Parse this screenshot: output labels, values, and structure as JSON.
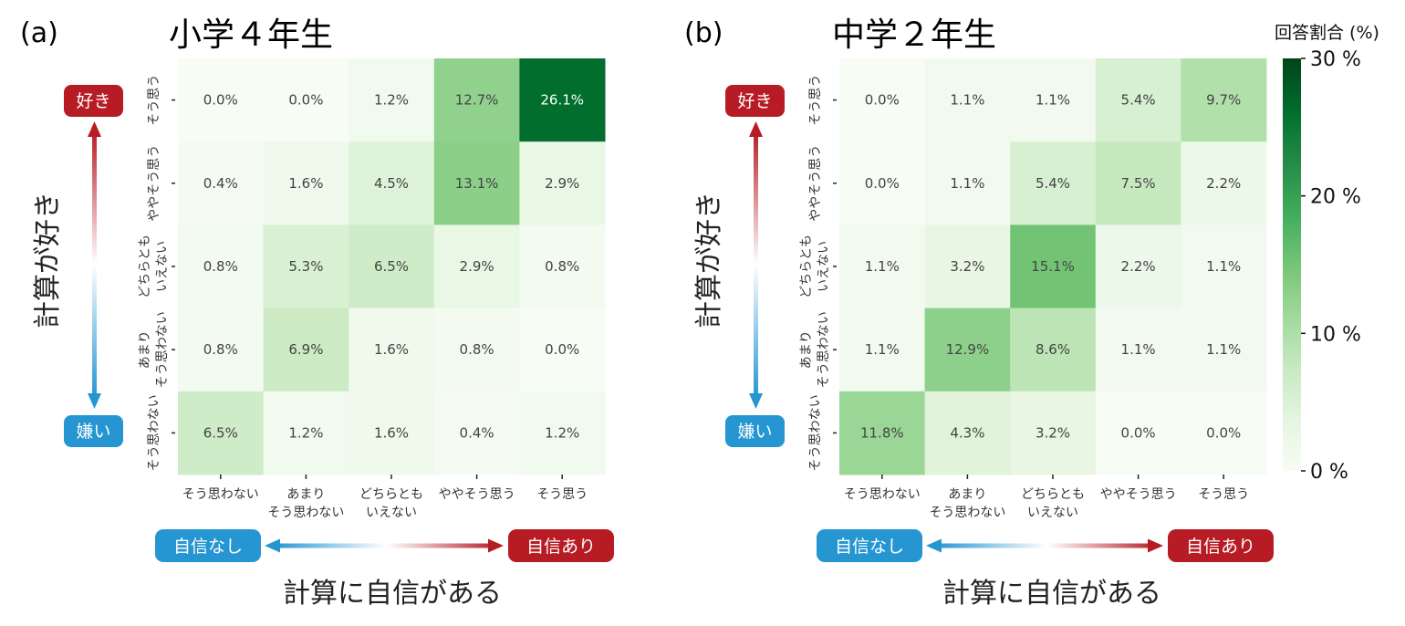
{
  "chart_data": [
    {
      "type": "heatmap",
      "panel_label": "(a)",
      "title": "小学４年生",
      "xlabel": "計算に自信がある",
      "ylabel": "計算が好き",
      "x_categories": [
        "そう思わない",
        "あまり\nそう思わない",
        "どちらとも\nいえない",
        "ややそう思う",
        "そう思う"
      ],
      "y_categories_top_to_bottom": [
        "そう思う",
        "ややそう思う",
        "どちらとも\nいえない",
        "あまり\nそう思わない",
        "そう思わない"
      ],
      "values_top_to_bottom": [
        [
          0.0,
          0.0,
          1.2,
          12.7,
          26.1
        ],
        [
          0.4,
          1.6,
          4.5,
          13.1,
          2.9
        ],
        [
          0.8,
          5.3,
          6.5,
          2.9,
          0.8
        ],
        [
          0.8,
          6.9,
          1.6,
          0.8,
          0.0
        ],
        [
          6.5,
          1.2,
          1.6,
          0.4,
          1.2
        ]
      ],
      "value_unit": "%",
      "y_badge_top": "好き",
      "y_badge_bottom": "嫌い",
      "x_badge_left": "自信なし",
      "x_badge_right": "自信あり"
    },
    {
      "type": "heatmap",
      "panel_label": "(b)",
      "title": "中学２年生",
      "xlabel": "計算に自信がある",
      "ylabel": "計算が好き",
      "x_categories": [
        "そう思わない",
        "あまり\nそう思わない",
        "どちらとも\nいえない",
        "ややそう思う",
        "そう思う"
      ],
      "y_categories_top_to_bottom": [
        "そう思う",
        "ややそう思う",
        "どちらとも\nいえない",
        "あまり\nそう思わない",
        "そう思わない"
      ],
      "values_top_to_bottom": [
        [
          0.0,
          1.1,
          1.1,
          5.4,
          9.7
        ],
        [
          0.0,
          1.1,
          5.4,
          7.5,
          2.2
        ],
        [
          1.1,
          3.2,
          15.1,
          2.2,
          1.1
        ],
        [
          1.1,
          12.9,
          8.6,
          1.1,
          1.1
        ],
        [
          11.8,
          4.3,
          3.2,
          0.0,
          0.0
        ]
      ],
      "value_unit": "%",
      "y_badge_top": "好き",
      "y_badge_bottom": "嫌い",
      "x_badge_left": "自信なし",
      "x_badge_right": "自信あり"
    }
  ],
  "colorbar": {
    "title": "回答割合 (%)",
    "range": [
      0,
      30
    ],
    "ticks": [
      0,
      10,
      20,
      30
    ],
    "tick_labels": [
      "0 %",
      "10 %",
      "20 %",
      "30 %"
    ],
    "colormap": "Greens"
  },
  "colors": {
    "positive_red": "#b71c25",
    "negative_blue": "#2596d1",
    "greens": [
      "#f7fcf5",
      "#e5f5e0",
      "#c7e9c0",
      "#a1d99b",
      "#74c476",
      "#41ab5d",
      "#238b45",
      "#006d2c",
      "#00441b"
    ]
  }
}
